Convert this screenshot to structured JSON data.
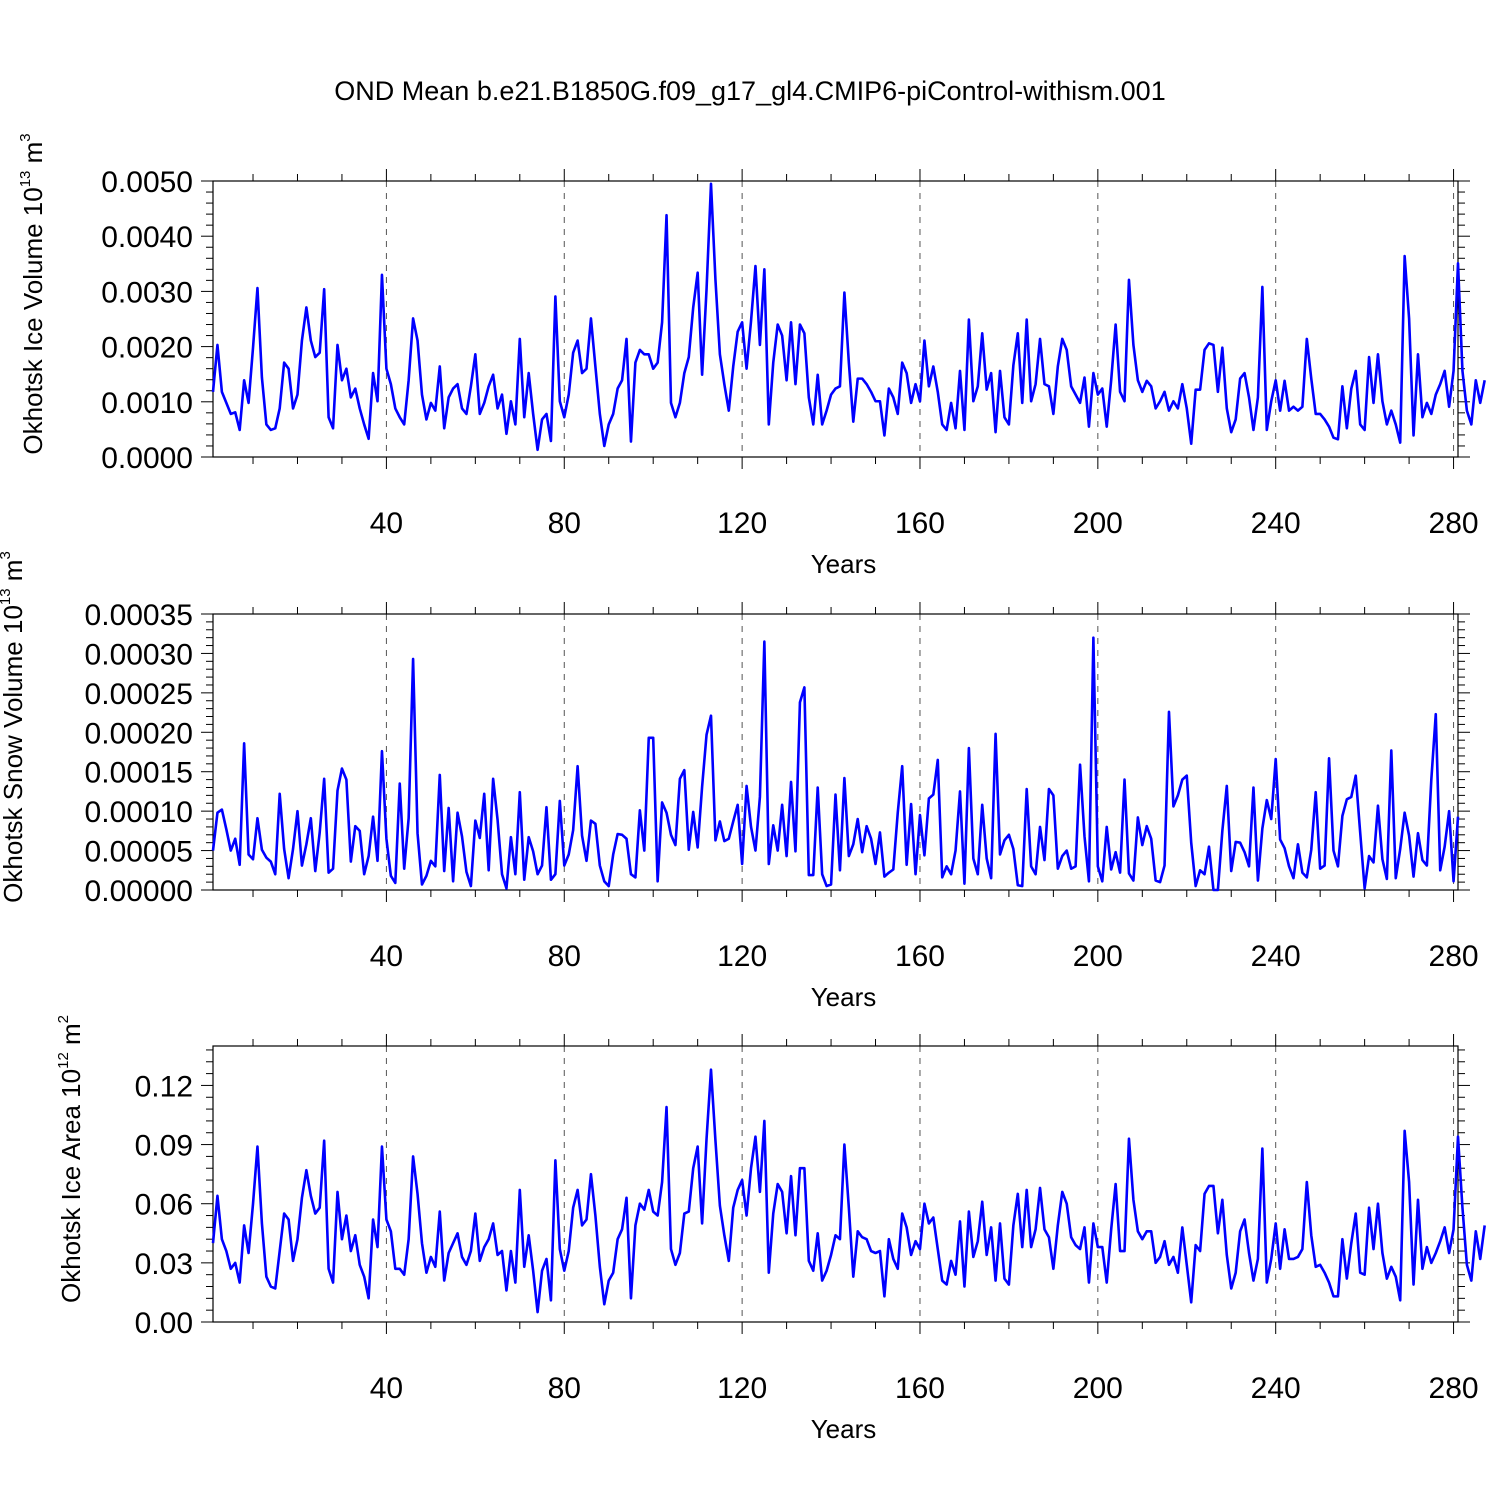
{
  "title": "OND Mean b.e21.B1850G.f09_g17_gl4.CMIP6-piControl-withism.001",
  "colors": {
    "line": "#0000ff",
    "axis": "#000000",
    "grid": "#555555"
  },
  "chart_data": [
    {
      "type": "line",
      "name": "ice-volume",
      "ylabel_main": "Okhotsk Ice Volume 10",
      "ylabel_exp": "13",
      "ylabel_unit": " m",
      "ylabel_unit_exp": "3",
      "xlabel": "Years",
      "xlim": [
        1,
        281
      ],
      "xticks": [
        40,
        80,
        120,
        160,
        200,
        240,
        280
      ],
      "ylim": [
        0,
        0.005
      ],
      "yticks": [
        "0.0000",
        "0.0010",
        "0.0020",
        "0.0030",
        "0.0040",
        "0.0050"
      ],
      "ytick_values": [
        0,
        0.001,
        0.002,
        0.003,
        0.004,
        0.005
      ],
      "grid": "vertical dashed at x ticks",
      "x_start": 1,
      "values": [
        0.00118,
        0.00203,
        0.00118,
        0.00098,
        0.00078,
        0.00081,
        0.00049,
        0.00139,
        0.00098,
        0.00198,
        0.00306,
        0.00144,
        0.00059,
        0.00049,
        0.00052,
        0.00088,
        0.00171,
        0.0016,
        0.00088,
        0.00113,
        0.00211,
        0.00271,
        0.00211,
        0.00181,
        0.00189,
        0.00304,
        0.00072,
        0.00052,
        0.00203,
        0.00139,
        0.0016,
        0.00108,
        0.00124,
        0.00088,
        0.00059,
        0.00033,
        0.00152,
        0.00101,
        0.0033,
        0.0016,
        0.00132,
        0.00088,
        0.00072,
        0.00059,
        0.00139,
        0.00251,
        0.00211,
        0.00113,
        0.00068,
        0.00098,
        0.00084,
        0.00164,
        0.00052,
        0.00108,
        0.00124,
        0.00132,
        0.00088,
        0.00078,
        0.00128,
        0.00186,
        0.00078,
        0.00098,
        0.00128,
        0.00149,
        0.00088,
        0.00113,
        0.00042,
        0.00101,
        0.00059,
        0.00214,
        0.00072,
        0.00152,
        0.00078,
        0.00013,
        0.00068,
        0.00078,
        0.00029,
        0.00291,
        0.00101,
        0.00072,
        0.00113,
        0.00189,
        0.00211,
        0.00152,
        0.0016,
        0.00251,
        0.00164,
        0.00078,
        0.0002,
        0.00059,
        0.00078,
        0.00124,
        0.00139,
        0.00214,
        0.00028,
        0.00171,
        0.00194,
        0.00186,
        0.00186,
        0.0016,
        0.00171,
        0.00244,
        0.00438,
        0.00098,
        0.00072,
        0.00098,
        0.00152,
        0.00181,
        0.00271,
        0.00334,
        0.00149,
        0.00304,
        0.00495,
        0.00321,
        0.00186,
        0.00132,
        0.00084,
        0.00164,
        0.00227,
        0.00244,
        0.0016,
        0.00246,
        0.00346,
        0.00203,
        0.0034,
        0.00059,
        0.00171,
        0.0024,
        0.0022,
        0.00139,
        0.00244,
        0.00132,
        0.0024,
        0.00224,
        0.00108,
        0.00059,
        0.00149,
        0.00059,
        0.00084,
        0.00113,
        0.00124,
        0.00128,
        0.00298,
        0.00171,
        0.00064,
        0.00142,
        0.00142,
        0.00132,
        0.00118,
        0.00101,
        0.00101,
        0.00039,
        0.00124,
        0.00108,
        0.00078,
        0.00171,
        0.00152,
        0.00098,
        0.00132,
        0.00101,
        0.00211,
        0.00128,
        0.00164,
        0.00118,
        0.00059,
        0.00049,
        0.00098,
        0.00052,
        0.00156,
        0.00049,
        0.00249,
        0.00101,
        0.00128,
        0.00224,
        0.00122,
        0.00152,
        0.00045,
        0.00156,
        0.00072,
        0.00059,
        0.00166,
        0.00224,
        0.00098,
        0.00249,
        0.00101,
        0.00132,
        0.00214,
        0.00132,
        0.00128,
        0.00078,
        0.00164,
        0.00214,
        0.00194,
        0.00128,
        0.00113,
        0.00098,
        0.00144,
        0.00055,
        0.00152,
        0.00113,
        0.00124,
        0.00055,
        0.00139,
        0.0024,
        0.00118,
        0.00101,
        0.00321,
        0.00203,
        0.00139,
        0.00118,
        0.00138,
        0.00128,
        0.00088,
        0.00101,
        0.00118,
        0.00084,
        0.00101,
        0.00088,
        0.00132,
        0.00088,
        0.00024,
        0.00122,
        0.00122,
        0.00194,
        0.00206,
        0.00203,
        0.00118,
        0.00198,
        0.00088,
        0.00045,
        0.00068,
        0.00142,
        0.00152,
        0.00108,
        0.00049,
        0.00108,
        0.00308,
        0.00049,
        0.00101,
        0.00139,
        0.00084,
        0.00138,
        0.00084,
        0.00091,
        0.00084,
        0.00091,
        0.00214,
        0.00142,
        0.00078,
        0.00078,
        0.00068,
        0.00055,
        0.00035,
        0.00032,
        0.00128,
        0.00052,
        0.00124,
        0.00156,
        0.00059,
        0.00049,
        0.00181,
        0.00098,
        0.00186,
        0.00101,
        0.00059,
        0.00084,
        0.00059,
        0.00026,
        0.00364,
        0.00251,
        0.00039,
        0.00186,
        0.00072,
        0.00098,
        0.00078,
        0.00113,
        0.00132,
        0.00156,
        0.00091,
        0.00156,
        0.00351,
        0.00156,
        0.00084,
        0.00059,
        0.00139,
        0.00098,
        0.00139
      ]
    },
    {
      "type": "line",
      "name": "snow-volume",
      "ylabel_main": "Okhotsk Snow Volume 10",
      "ylabel_exp": "13",
      "ylabel_unit": " m",
      "ylabel_unit_exp": "3",
      "xlabel": "Years",
      "xlim": [
        1,
        281
      ],
      "xticks": [
        40,
        80,
        120,
        160,
        200,
        240,
        280
      ],
      "ylim": [
        0,
        0.00035
      ],
      "yticks": [
        "0.00000",
        "0.00005",
        "0.00010",
        "0.00015",
        "0.00020",
        "0.00025",
        "0.00030",
        "0.00035"
      ],
      "ytick_values": [
        0,
        5e-05,
        0.0001,
        0.00015,
        0.0002,
        0.00025,
        0.0003,
        0.00035
      ],
      "grid": "vertical dashed at x ticks",
      "x_start": 1,
      "values": [
        5e-05,
        9.8e-05,
        0.000102,
        7.7e-05,
        5e-05,
        6.5e-05,
        3.2e-05,
        0.000186,
        4.5e-05,
        3.9e-05,
        9.1e-05,
        5.1e-05,
        4.1e-05,
        3.6e-05,
        2e-05,
        0.000122,
        5.2e-05,
        1.5e-05,
        5.2e-05,
        0.0001,
        3.1e-05,
        5.8e-05,
        9.1e-05,
        2.4e-05,
        7.3e-05,
        0.000141,
        2.2e-05,
        2.7e-05,
        0.000126,
        0.000154,
        0.00014,
        3.6e-05,
        8.1e-05,
        7.5e-05,
        2e-05,
        4.3e-05,
        9.3e-05,
        3.7e-05,
        0.000176,
        6.5e-05,
        1.8e-05,
        9e-06,
        0.000135,
        2.7e-05,
        9.1e-05,
        0.000293,
        7.2e-05,
        7e-06,
        1.8e-05,
        3.7e-05,
        3e-05,
        0.000146,
        2.4e-05,
        0.000104,
        1.1e-05,
        9.8e-05,
        6.8e-05,
        2.3e-05,
        5e-06,
        8.8e-05,
        6.6e-05,
        0.000122,
        2.5e-05,
        0.000141,
        8.9e-05,
        2e-05,
        2e-06,
        6.7e-05,
        2e-05,
        0.000124,
        1.3e-05,
        6.7e-05,
        4.9e-05,
        2e-05,
        3.1e-05,
        0.000105,
        1.3e-05,
        2e-05,
        0.000113,
        3.1e-05,
        4.5e-05,
        7.6e-05,
        0.000157,
        6.9e-05,
        3.7e-05,
        8.8e-05,
        8.4e-05,
        3.1e-05,
        1.1e-05,
        5e-06,
        4.5e-05,
        7.1e-05,
        7e-05,
        6.5e-05,
        2e-05,
        1.6e-05,
        0.000101,
        5e-05,
        0.000193,
        0.000193,
        1.1e-05,
        0.000111,
        9.8e-05,
        7e-05,
        5.7e-05,
        0.000141,
        0.000152,
        5.1e-05,
        9.9e-05,
        5.4e-05,
        0.000131,
        0.000197,
        0.000221,
        6.3e-05,
        8.7e-05,
        6.2e-05,
        6.5e-05,
        8.7e-05,
        0.000108,
        3.3e-05,
        0.000132,
        8e-05,
        5e-05,
        0.000118,
        0.000315,
        3.3e-05,
        8.2e-05,
        5e-05,
        0.000108,
        4.3e-05,
        0.000137,
        4.9e-05,
        0.000238,
        0.000257,
        1.9e-05,
        1.9e-05,
        0.00013,
        2e-05,
        5e-06,
        7e-06,
        0.000121,
        2.5e-05,
        0.000142,
        4.3e-05,
        5.8e-05,
        9e-05,
        4.8e-05,
        8.1e-05,
        6.5e-05,
        3.3e-05,
        7.3e-05,
        1.7e-05,
        2.2e-05,
        2.6e-05,
        9.8e-05,
        0.000157,
        3.2e-05,
        0.000109,
        2e-05,
        9.5e-05,
        4.4e-05,
        0.000116,
        0.000121,
        0.000165,
        1.6e-05,
        3e-05,
        2e-05,
        5e-05,
        0.000125,
        8e-06,
        0.00018,
        4e-05,
        2e-05,
        0.000108,
        4e-05,
        1.5e-05,
        0.000198,
        4.5e-05,
        6.3e-05,
        7e-05,
        5.2e-05,
        6e-06,
        5e-06,
        0.000128,
        3e-05,
        2e-05,
        8e-05,
        3.8e-05,
        0.000128,
        0.00012,
        2.7e-05,
        4.3e-05,
        5e-05,
        2.7e-05,
        3e-05,
        0.000159,
        6.8e-05,
        1.1e-05,
        0.00032,
        3e-05,
        1.1e-05,
        8e-05,
        2.6e-05,
        4.8e-05,
        2.2e-05,
        0.00014,
        2.1e-05,
        1.2e-05,
        9.2e-05,
        5.7e-05,
        8.1e-05,
        6.5e-05,
        1.2e-05,
        1e-05,
        3.1e-05,
        0.000226,
        0.000106,
        0.00012,
        0.00014,
        0.000145,
        6e-05,
        5e-06,
        2.5e-05,
        2e-05,
        5.5e-05,
        0.0,
        0.0,
        7.5e-05,
        0.000132,
        2.4e-05,
        6.1e-05,
        6e-05,
        4.8e-05,
        3e-05,
        0.00013,
        1.2e-05,
        7.8e-05,
        0.000114,
        9e-05,
        0.000166,
        6.4e-05,
        5.3e-05,
        3e-05,
        1.5e-05,
        5.8e-05,
        2.2e-05,
        1.6e-05,
        5.1e-05,
        0.000124,
        2.7e-05,
        3.1e-05,
        0.000167,
        5e-05,
        3e-05,
        9.4e-05,
        0.000115,
        0.000118,
        0.000145,
        7.3e-05,
        2e-06,
        4.3e-05,
        3.5e-05,
        0.000107,
        3.9e-05,
        1.4e-05,
        0.000177,
        1.5e-05,
        5.2e-05,
        9.8e-05,
        6.9e-05,
        1.7e-05,
        7.2e-05,
        3.8e-05,
        3.1e-05,
        0.00014,
        0.000223,
        2.5e-05,
        5.5e-05,
        0.0001,
        1.1e-05,
        9.3e-05
      ]
    },
    {
      "type": "line",
      "name": "ice-area",
      "ylabel_main": "Okhotsk Ice Area 10",
      "ylabel_exp": "12",
      "ylabel_unit": " m",
      "ylabel_unit_exp": "2",
      "xlabel": "Years",
      "xlim": [
        1,
        281
      ],
      "xticks": [
        40,
        80,
        120,
        160,
        200,
        240,
        280
      ],
      "ylim": [
        0,
        0.14
      ],
      "yticks": [
        "0.00",
        "0.03",
        "0.06",
        "0.09",
        "0.12"
      ],
      "ytick_values": [
        0,
        0.03,
        0.06,
        0.09,
        0.12
      ],
      "grid": "vertical dashed at x ticks",
      "x_start": 1,
      "values": [
        0.04,
        0.064,
        0.042,
        0.036,
        0.027,
        0.03,
        0.02,
        0.049,
        0.035,
        0.06,
        0.089,
        0.05,
        0.023,
        0.018,
        0.017,
        0.036,
        0.055,
        0.052,
        0.031,
        0.042,
        0.063,
        0.077,
        0.064,
        0.055,
        0.058,
        0.092,
        0.027,
        0.02,
        0.066,
        0.042,
        0.054,
        0.036,
        0.044,
        0.029,
        0.023,
        0.012,
        0.052,
        0.038,
        0.089,
        0.052,
        0.046,
        0.027,
        0.027,
        0.024,
        0.042,
        0.084,
        0.065,
        0.04,
        0.025,
        0.033,
        0.028,
        0.056,
        0.021,
        0.035,
        0.04,
        0.045,
        0.033,
        0.029,
        0.036,
        0.055,
        0.031,
        0.038,
        0.042,
        0.05,
        0.034,
        0.036,
        0.016,
        0.036,
        0.02,
        0.067,
        0.028,
        0.044,
        0.026,
        0.005,
        0.026,
        0.032,
        0.011,
        0.082,
        0.037,
        0.026,
        0.036,
        0.058,
        0.067,
        0.049,
        0.052,
        0.075,
        0.054,
        0.028,
        0.009,
        0.021,
        0.025,
        0.042,
        0.047,
        0.063,
        0.012,
        0.049,
        0.06,
        0.057,
        0.067,
        0.056,
        0.054,
        0.071,
        0.109,
        0.037,
        0.029,
        0.035,
        0.055,
        0.056,
        0.078,
        0.089,
        0.05,
        0.093,
        0.128,
        0.092,
        0.059,
        0.044,
        0.031,
        0.058,
        0.067,
        0.072,
        0.054,
        0.078,
        0.094,
        0.066,
        0.102,
        0.025,
        0.055,
        0.07,
        0.066,
        0.045,
        0.074,
        0.044,
        0.078,
        0.078,
        0.031,
        0.026,
        0.045,
        0.021,
        0.026,
        0.034,
        0.044,
        0.042,
        0.09,
        0.058,
        0.023,
        0.046,
        0.043,
        0.042,
        0.036,
        0.035,
        0.036,
        0.013,
        0.042,
        0.032,
        0.027,
        0.055,
        0.048,
        0.034,
        0.041,
        0.037,
        0.06,
        0.05,
        0.053,
        0.037,
        0.021,
        0.019,
        0.031,
        0.024,
        0.051,
        0.018,
        0.056,
        0.033,
        0.041,
        0.061,
        0.034,
        0.048,
        0.021,
        0.05,
        0.022,
        0.019,
        0.049,
        0.065,
        0.038,
        0.067,
        0.038,
        0.047,
        0.068,
        0.047,
        0.043,
        0.027,
        0.049,
        0.066,
        0.06,
        0.043,
        0.039,
        0.037,
        0.048,
        0.02,
        0.05,
        0.038,
        0.038,
        0.02,
        0.047,
        0.07,
        0.036,
        0.036,
        0.093,
        0.062,
        0.046,
        0.042,
        0.046,
        0.046,
        0.03,
        0.033,
        0.041,
        0.029,
        0.033,
        0.025,
        0.048,
        0.029,
        0.01,
        0.039,
        0.036,
        0.065,
        0.069,
        0.069,
        0.045,
        0.062,
        0.034,
        0.017,
        0.025,
        0.046,
        0.052,
        0.035,
        0.021,
        0.032,
        0.088,
        0.02,
        0.032,
        0.05,
        0.027,
        0.047,
        0.032,
        0.032,
        0.033,
        0.037,
        0.071,
        0.044,
        0.028,
        0.029,
        0.025,
        0.02,
        0.013,
        0.013,
        0.042,
        0.022,
        0.04,
        0.055,
        0.025,
        0.024,
        0.058,
        0.037,
        0.06,
        0.035,
        0.022,
        0.028,
        0.023,
        0.011,
        0.097,
        0.071,
        0.019,
        0.062,
        0.027,
        0.038,
        0.03,
        0.035,
        0.041,
        0.048,
        0.035,
        0.047,
        0.094,
        0.058,
        0.029,
        0.021,
        0.046,
        0.032,
        0.049
      ]
    }
  ]
}
